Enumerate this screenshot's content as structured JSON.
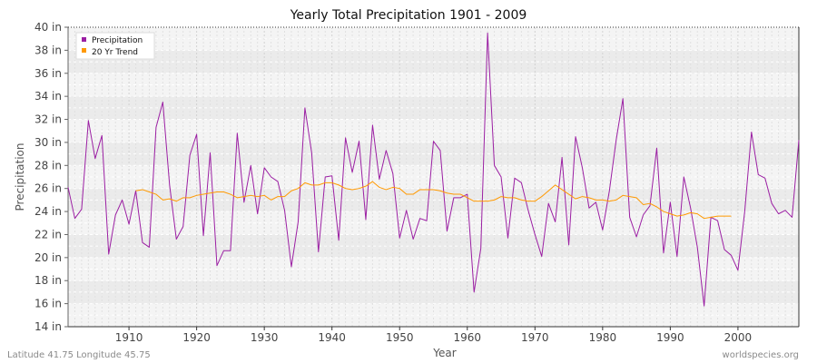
{
  "chart_data": {
    "type": "line",
    "title": "Yearly Total Precipitation 1901 - 2009",
    "xlabel": "Year",
    "ylabel": "Precipitation",
    "xlim": [
      1901,
      2009
    ],
    "ylim": [
      14,
      40
    ],
    "y_ticks": [
      {
        "value": 14,
        "label": "14 in"
      },
      {
        "value": 16,
        "label": "16 in"
      },
      {
        "value": 18,
        "label": "18 in"
      },
      {
        "value": 20,
        "label": "20 in"
      },
      {
        "value": 22,
        "label": "22 in"
      },
      {
        "value": 24,
        "label": "24 in"
      },
      {
        "value": 26,
        "label": "26 in"
      },
      {
        "value": 28,
        "label": "28 in"
      },
      {
        "value": 30,
        "label": "30 in"
      },
      {
        "value": 32,
        "label": "32 in"
      },
      {
        "value": 34,
        "label": "34 in"
      },
      {
        "value": 36,
        "label": "36 in"
      },
      {
        "value": 38,
        "label": "38 in"
      },
      {
        "value": 40,
        "label": "40 in"
      }
    ],
    "x_ticks": [
      {
        "value": 1910,
        "label": "1910"
      },
      {
        "value": 1920,
        "label": "1920"
      },
      {
        "value": 1930,
        "label": "1930"
      },
      {
        "value": 1940,
        "label": "1940"
      },
      {
        "value": 1950,
        "label": "1950"
      },
      {
        "value": 1960,
        "label": "1960"
      },
      {
        "value": 1970,
        "label": "1970"
      },
      {
        "value": 1980,
        "label": "1980"
      },
      {
        "value": 1990,
        "label": "1990"
      },
      {
        "value": 2000,
        "label": "2000"
      }
    ],
    "legend_position": "top-left",
    "series": [
      {
        "name": "Precipitation",
        "color": "#9b1fa3",
        "x_start": 1901,
        "values": [
          26.1,
          23.4,
          24.2,
          31.9,
          28.6,
          30.6,
          20.3,
          23.7,
          25.0,
          22.9,
          25.8,
          21.3,
          20.9,
          31.3,
          33.5,
          26.3,
          21.6,
          22.7,
          28.9,
          30.7,
          21.9,
          29.1,
          19.3,
          20.6,
          20.6,
          30.8,
          24.8,
          28.0,
          23.8,
          27.8,
          27.0,
          26.6,
          24.1,
          19.2,
          23.1,
          33.0,
          29.1,
          20.5,
          27.0,
          27.1,
          21.5,
          30.4,
          27.4,
          30.1,
          23.3,
          31.5,
          26.8,
          29.3,
          27.3,
          21.7,
          24.1,
          21.6,
          23.4,
          23.2,
          30.1,
          29.3,
          22.3,
          25.2,
          25.2,
          25.5,
          17.0,
          20.8,
          39.5,
          28.0,
          27.0,
          21.7,
          26.9,
          26.5,
          24.1,
          22.0,
          20.1,
          24.7,
          23.1,
          28.7,
          21.1,
          30.5,
          27.8,
          24.3,
          24.8,
          22.4,
          25.8,
          30.2,
          33.8,
          23.5,
          21.8,
          23.7,
          24.5,
          29.5,
          20.4,
          24.8,
          20.1,
          27.0,
          24.3,
          20.9,
          15.8,
          23.5,
          23.2,
          20.7,
          20.2,
          18.9,
          24.0,
          30.9,
          27.2,
          26.9,
          24.7,
          23.8,
          24.1,
          23.5,
          30.2
        ]
      },
      {
        "name": "20 Yr Trend",
        "color": "#ff9900",
        "x_start": 1911,
        "values": [
          25.8,
          25.9,
          25.7,
          25.5,
          25.0,
          25.1,
          24.9,
          25.2,
          25.2,
          25.4,
          25.5,
          25.6,
          25.7,
          25.7,
          25.5,
          25.2,
          25.3,
          25.4,
          25.3,
          25.4,
          25.0,
          25.3,
          25.3,
          25.8,
          26.0,
          26.5,
          26.3,
          26.3,
          26.5,
          26.5,
          26.3,
          26.0,
          25.9,
          26.0,
          26.2,
          26.6,
          26.1,
          25.9,
          26.1,
          26.0,
          25.5,
          25.5,
          25.9,
          25.9,
          25.9,
          25.8,
          25.6,
          25.5,
          25.5,
          25.2,
          24.9,
          24.9,
          24.9,
          25.0,
          25.3,
          25.2,
          25.2,
          25.0,
          24.9,
          24.9,
          25.3,
          25.8,
          26.3,
          25.9,
          25.5,
          25.1,
          25.3,
          25.2,
          25.0,
          25.0,
          24.9,
          25.0,
          25.4,
          25.3,
          25.2,
          24.6,
          24.7,
          24.4,
          24.0,
          23.8,
          23.6,
          23.7,
          23.9,
          23.8,
          23.4,
          23.5,
          23.6,
          23.6,
          23.6
        ]
      }
    ],
    "footer_left": "Latitude 41.75 Longitude 45.75",
    "footer_right": "worldspecies.org"
  }
}
